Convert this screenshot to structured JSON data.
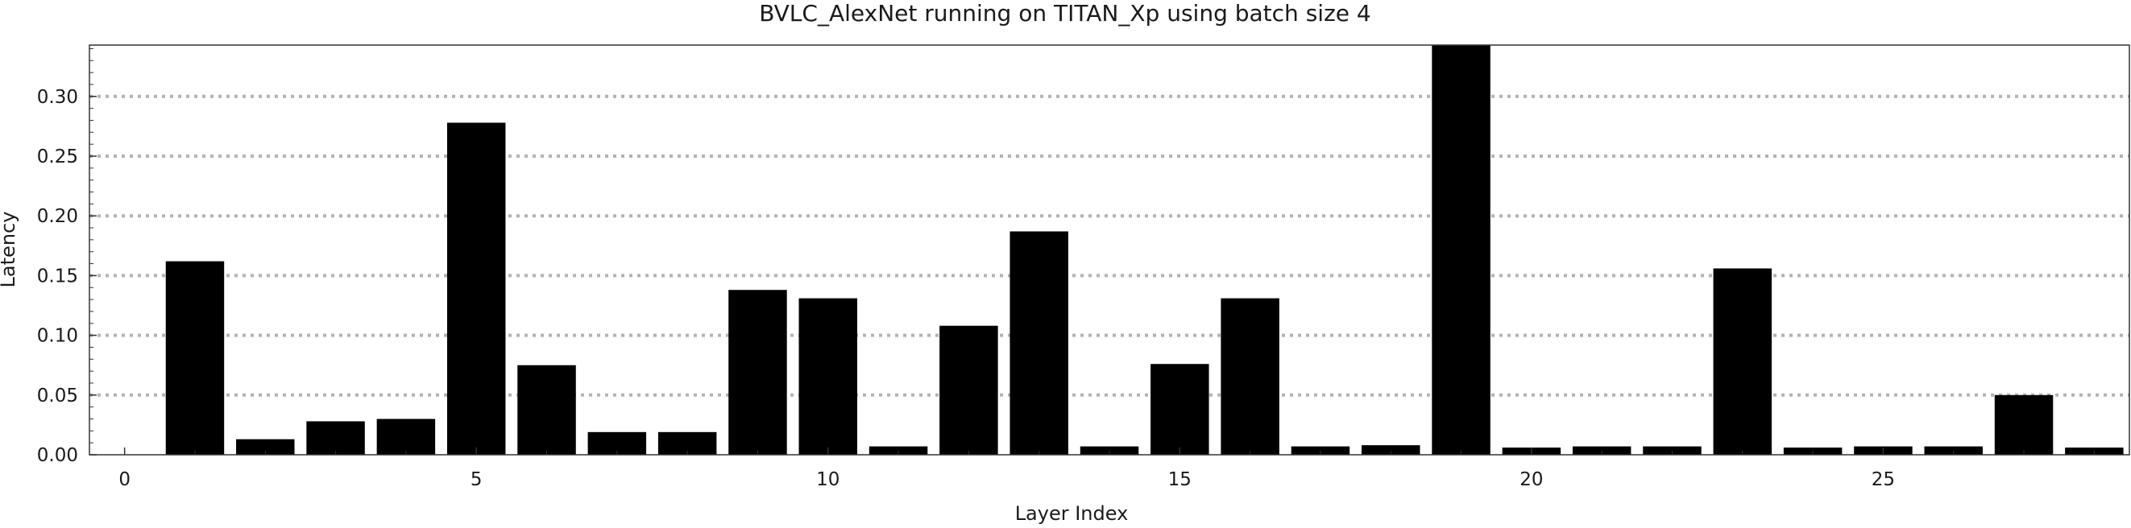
{
  "chart_data": {
    "type": "bar",
    "title": "BVLC_AlexNet running on TITAN_Xp using batch size 4",
    "xlabel": "Layer Index",
    "ylabel": "Latency",
    "x": [
      1,
      2,
      3,
      4,
      5,
      6,
      7,
      8,
      9,
      10,
      11,
      12,
      13,
      14,
      15,
      16,
      17,
      18,
      19,
      20,
      21,
      22,
      23,
      24,
      25,
      26,
      27,
      28
    ],
    "values": [
      0.162,
      0.013,
      0.028,
      0.03,
      0.278,
      0.075,
      0.019,
      0.019,
      0.138,
      0.131,
      0.007,
      0.108,
      0.187,
      0.007,
      0.076,
      0.131,
      0.007,
      0.008,
      0.345,
      0.006,
      0.007,
      0.007,
      0.156,
      0.006,
      0.007,
      0.007,
      0.05,
      0.006
    ],
    "xlim": [
      -0.5,
      28.5
    ],
    "ylim": [
      0,
      0.343
    ],
    "x_ticks": [
      0,
      5,
      10,
      15,
      20,
      25
    ],
    "x_tick_labels": [
      "0",
      "5",
      "10",
      "15",
      "20",
      "25"
    ],
    "y_ticks": [
      0,
      0.05,
      0.1,
      0.15,
      0.2,
      0.25,
      0.3
    ],
    "y_tick_labels": [
      "0.00",
      "0.05",
      "0.10",
      "0.15",
      "0.20",
      "0.25",
      "0.30"
    ],
    "grid": "horizontal dotted",
    "bar_color": "#000000",
    "gridline_color": "#b3b3b3",
    "frame_color": "#333333"
  }
}
